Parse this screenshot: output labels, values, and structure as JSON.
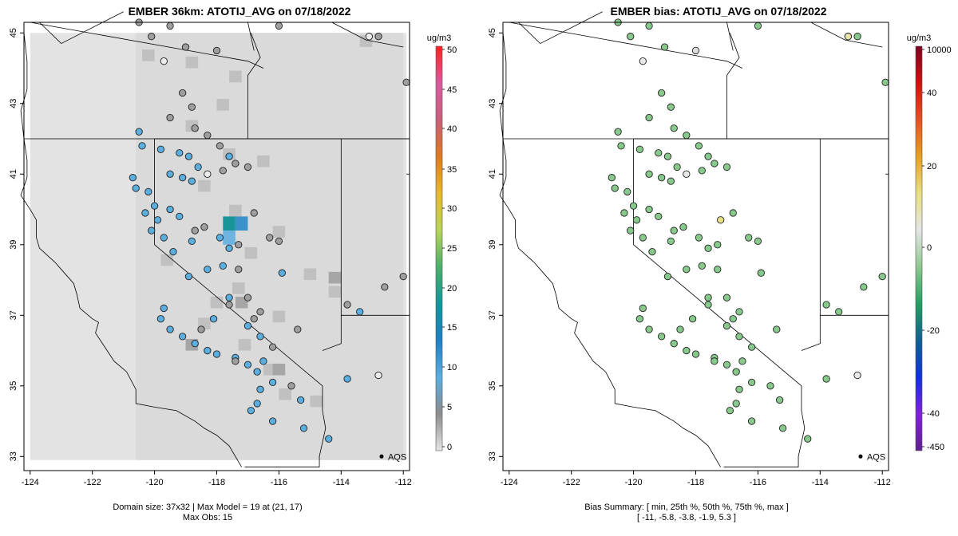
{
  "left": {
    "title": "EMBER 36km: ATOTIJ_AVG on 07/18/2022",
    "note_line1": "Domain size: 37x32 | Max Model = 19 at (21, 17)",
    "note_line2": "Max Obs: 15",
    "unit": "ug/m3",
    "colorbar_ticks": [
      "0",
      "5",
      "10",
      "15",
      "20",
      "25",
      "30",
      "35",
      "40",
      "45",
      "50"
    ],
    "colorbar_colors": [
      "#e6e6e6",
      "#8c8c8c",
      "#5aaee0",
      "#1f7fc4",
      "#12969a",
      "#4caf6a",
      "#b8d45a",
      "#e8b830",
      "#dd7a20",
      "#c8607a",
      "#d85aa0",
      "#ff2020"
    ]
  },
  "right": {
    "title": "EMBER bias: ATOTIJ_AVG on 07/18/2022",
    "note_line1": "Bias Summary: [ min, 25th %, 50th %, 75th %, max ]",
    "note_line2": "[ -11,   -5.8,   -3.8,   -1.9,   5.3 ]",
    "unit": "ug/m3",
    "colorbar_ticks": [
      "10000",
      "40",
      "20",
      "0",
      "-20",
      "-40",
      "-450"
    ],
    "colorbar_colors": [
      "#800020",
      "#d01010",
      "#e85020",
      "#e8a020",
      "#e8e080",
      "#e6e6e6",
      "#90c890",
      "#20a060",
      "#106090",
      "#1030e0",
      "#8020e0",
      "#602090"
    ]
  },
  "map": {
    "x_ticks": [
      "-124",
      "-122",
      "-120",
      "-118",
      "-116",
      "-114",
      "-112"
    ],
    "y_ticks": [
      "33",
      "35",
      "37",
      "39",
      "41",
      "43",
      "45"
    ],
    "legend_label": "AQS",
    "colors": {
      "obs_blue": "#5aaee0",
      "obs_gray": "#9e9e9e",
      "bias_green": "#86c98a",
      "grid_light": "#dadada",
      "grid_mid": "#c0c0c0",
      "grid_dark": "#a6a6a6",
      "teal": "#18949a"
    }
  },
  "chart_data": {
    "type": "heatmap",
    "panels": [
      {
        "title": "EMBER 36km: ATOTIJ_AVG on 07/18/2022",
        "variable": "ATOTIJ_AVG",
        "date": "07/18/2022",
        "xlim": [
          -124.2,
          -111.8
        ],
        "ylim": [
          32.6,
          45.3
        ],
        "colorbar_range": [
          0,
          50
        ],
        "domain_size": "37x32",
        "max_model": 19,
        "max_obs": 15
      },
      {
        "title": "EMBER bias: ATOTIJ_AVG on 07/18/2022",
        "type": "scatter",
        "bias_summary": {
          "min": -11,
          "p25": -5.8,
          "p50": -3.8,
          "p75": -1.9,
          "max": 5.3
        }
      }
    ]
  }
}
